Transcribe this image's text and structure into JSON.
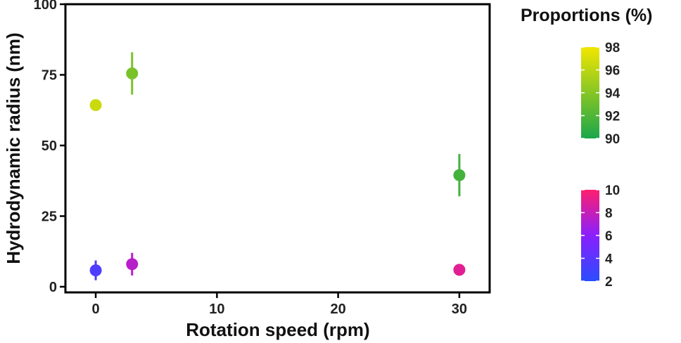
{
  "chart_data": {
    "type": "scatter",
    "xlabel": "Rotation speed (rpm)",
    "ylabel": "Hydrodynamic radius (nm)",
    "xlim": [
      -2.5,
      32.5
    ],
    "ylim": [
      -2,
      100
    ],
    "x_ticks": [
      0,
      10,
      20,
      30
    ],
    "y_ticks": [
      0,
      25,
      50,
      75,
      100
    ],
    "grid": false,
    "legend_position": "right",
    "points": [
      {
        "x": 0,
        "y": 64.3,
        "err": 1.5,
        "proportion": 96.5,
        "group": "high"
      },
      {
        "x": 3,
        "y": 75.5,
        "err": 7.5,
        "proportion": 93.5,
        "group": "high"
      },
      {
        "x": 30,
        "y": 39.5,
        "err": 7.5,
        "proportion": 91.5,
        "group": "high"
      },
      {
        "x": 0,
        "y": 5.8,
        "err": 3.5,
        "proportion": 3.5,
        "group": "low"
      },
      {
        "x": 3,
        "y": 8.0,
        "err": 4.0,
        "proportion": 7.5,
        "group": "low"
      },
      {
        "x": 30,
        "y": 6.0,
        "err": 0.8,
        "proportion": 9.0,
        "group": "low"
      }
    ],
    "legend": {
      "title": "Proportions (%)",
      "scales": [
        {
          "group": "high",
          "range": [
            90,
            98
          ],
          "ticks": [
            90,
            92,
            94,
            96,
            98
          ],
          "colors": [
            "#1aa64a",
            "#f2e600"
          ]
        },
        {
          "group": "low",
          "range": [
            2,
            10
          ],
          "ticks": [
            2,
            4,
            6,
            8,
            10
          ],
          "colors": [
            "#2a4dff",
            "#8a1fff",
            "#ff1f6e"
          ]
        }
      ]
    }
  }
}
